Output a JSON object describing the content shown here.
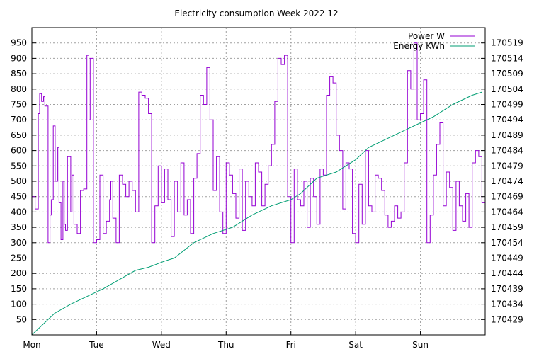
{
  "chart_data": {
    "type": "line",
    "title": "Electricity consumption Week 2022 12",
    "x_categories": [
      "Mon",
      "Tue",
      "Wed",
      "Thu",
      "Fri",
      "Sat",
      "Sun"
    ],
    "xlim_days": [
      0,
      7
    ],
    "grid": true,
    "legend_position": "top-right",
    "y_left": {
      "ylim": [
        0,
        1000
      ],
      "ticks": [
        50,
        100,
        150,
        200,
        250,
        300,
        350,
        400,
        450,
        500,
        550,
        600,
        650,
        700,
        750,
        800,
        850,
        900,
        950
      ]
    },
    "y_right": {
      "ylim": [
        170424,
        170524
      ],
      "ticks": [
        170429,
        170434,
        170439,
        170444,
        170449,
        170454,
        170459,
        170464,
        170469,
        170474,
        170479,
        170484,
        170489,
        170494,
        170499,
        170504,
        170509,
        170514,
        170519
      ]
    },
    "series": [
      {
        "name": "Power W",
        "axis": "left",
        "color": "#9400d3",
        "style": "steps",
        "x": [
          0,
          0.05,
          0.1,
          0.12,
          0.15,
          0.18,
          0.2,
          0.25,
          0.28,
          0.3,
          0.33,
          0.36,
          0.4,
          0.42,
          0.45,
          0.48,
          0.5,
          0.52,
          0.55,
          0.6,
          0.62,
          0.65,
          0.7,
          0.75,
          0.8,
          0.85,
          0.88,
          0.9,
          0.95,
          1.0,
          1.05,
          1.1,
          1.15,
          1.2,
          1.22,
          1.25,
          1.3,
          1.35,
          1.4,
          1.45,
          1.5,
          1.55,
          1.6,
          1.65,
          1.7,
          1.75,
          1.8,
          1.85,
          1.9,
          1.95,
          2.0,
          2.05,
          2.1,
          2.15,
          2.2,
          2.25,
          2.3,
          2.35,
          2.4,
          2.45,
          2.5,
          2.55,
          2.6,
          2.65,
          2.7,
          2.75,
          2.8,
          2.85,
          2.9,
          2.95,
          3.0,
          3.05,
          3.1,
          3.15,
          3.2,
          3.25,
          3.3,
          3.35,
          3.4,
          3.45,
          3.5,
          3.55,
          3.6,
          3.65,
          3.7,
          3.75,
          3.8,
          3.85,
          3.9,
          3.95,
          4.0,
          4.05,
          4.1,
          4.15,
          4.2,
          4.25,
          4.3,
          4.35,
          4.4,
          4.45,
          4.5,
          4.55,
          4.6,
          4.65,
          4.7,
          4.75,
          4.8,
          4.85,
          4.9,
          4.95,
          5.0,
          5.05,
          5.1,
          5.15,
          5.2,
          5.25,
          5.3,
          5.35,
          5.4,
          5.45,
          5.5,
          5.55,
          5.6,
          5.65,
          5.7,
          5.75,
          5.8,
          5.85,
          5.9,
          5.95,
          6.0,
          6.05,
          6.1,
          6.15,
          6.2,
          6.25,
          6.3,
          6.35,
          6.4,
          6.45,
          6.5,
          6.55,
          6.6,
          6.65,
          6.7,
          6.75,
          6.8,
          6.85,
          6.9,
          6.95
        ],
        "values": [
          450,
          410,
          720,
          785,
          760,
          775,
          745,
          300,
          390,
          440,
          680,
          500,
          610,
          430,
          310,
          500,
          360,
          340,
          580,
          400,
          520,
          360,
          330,
          470,
          475,
          910,
          700,
          900,
          300,
          310,
          520,
          330,
          370,
          440,
          500,
          380,
          300,
          520,
          490,
          450,
          500,
          470,
          400,
          790,
          780,
          770,
          720,
          300,
          420,
          550,
          430,
          540,
          440,
          320,
          500,
          400,
          560,
          390,
          440,
          330,
          510,
          590,
          780,
          750,
          870,
          700,
          470,
          580,
          400,
          330,
          560,
          520,
          460,
          380,
          540,
          340,
          500,
          450,
          420,
          560,
          530,
          420,
          490,
          550,
          620,
          760,
          900,
          880,
          910,
          450,
          300,
          540,
          440,
          420,
          500,
          350,
          510,
          450,
          360,
          540,
          520,
          780,
          840,
          820,
          650,
          600,
          410,
          560,
          540,
          330,
          300,
          490,
          360,
          600,
          420,
          400,
          520,
          510,
          470,
          390,
          350,
          370,
          420,
          380,
          400,
          560,
          860,
          800,
          950,
          700,
          720,
          830,
          300,
          390,
          520,
          620,
          690,
          420,
          530,
          480,
          340,
          500,
          420,
          370,
          460,
          350,
          560,
          600,
          580,
          430
        ]
      },
      {
        "name": "Energy KWh",
        "axis": "right",
        "color": "#009e73",
        "style": "line",
        "x": [
          0,
          0.15,
          0.35,
          0.6,
          0.9,
          1.1,
          1.35,
          1.6,
          1.8,
          2.05,
          2.2,
          2.5,
          2.8,
          3.1,
          3.4,
          3.7,
          4.0,
          4.15,
          4.4,
          4.7,
          5.0,
          5.2,
          5.5,
          5.8,
          6.0,
          6.2,
          6.5,
          6.8,
          6.95
        ],
        "values": [
          170424,
          170427,
          170431,
          170434,
          170437,
          170439,
          170442,
          170445,
          170446,
          170448,
          170449,
          170454,
          170457,
          170459,
          170463,
          170466,
          170468,
          170470,
          170475,
          170477,
          170481,
          170485,
          170488,
          170491,
          170493,
          170495,
          170499,
          170502,
          170503
        ]
      }
    ]
  }
}
